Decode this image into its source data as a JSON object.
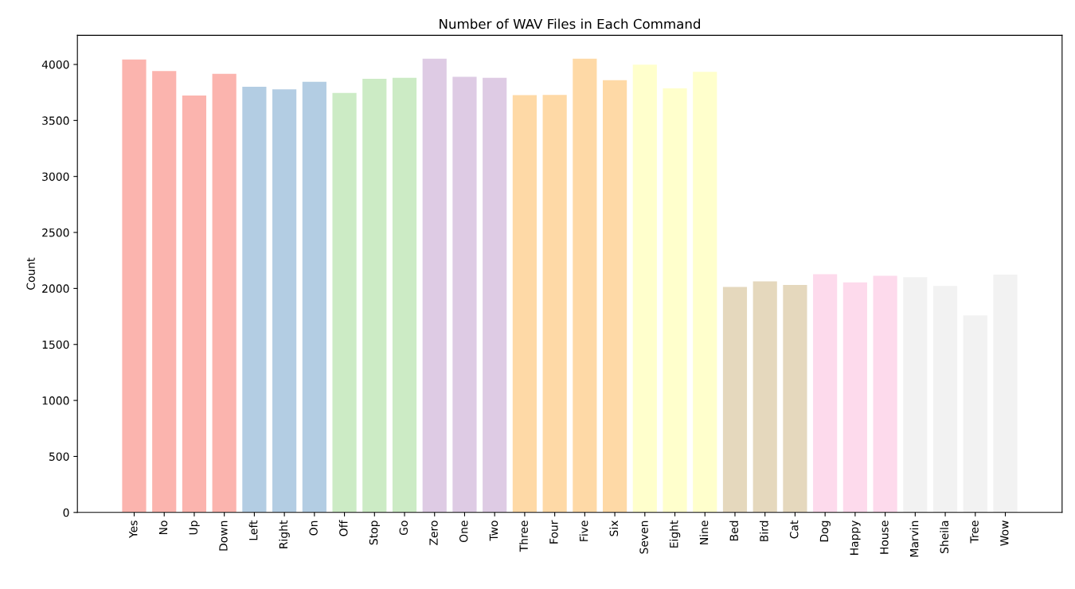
{
  "chart_data": {
    "type": "bar",
    "title": "Number of WAV Files in Each Command",
    "ylabel": "Count",
    "categories": [
      "Yes",
      "No",
      "Up",
      "Down",
      "Left",
      "Right",
      "On",
      "Off",
      "Stop",
      "Go",
      "Zero",
      "One",
      "Two",
      "Three",
      "Four",
      "Five",
      "Six",
      "Seven",
      "Eight",
      "Nine",
      "Bed",
      "Bird",
      "Cat",
      "Dog",
      "Happy",
      "House",
      "Marvin",
      "Sheila",
      "Tree",
      "Wow"
    ],
    "values": [
      4044,
      3941,
      3723,
      3917,
      3801,
      3778,
      3845,
      3745,
      3872,
      3880,
      4052,
      3890,
      3880,
      3727,
      3728,
      4052,
      3860,
      3998,
      3787,
      3934,
      2014,
      2064,
      2031,
      2128,
      2054,
      2113,
      2100,
      2022,
      1759,
      2123
    ],
    "colors": [
      "#fbb4ae",
      "#fbb4ae",
      "#fbb4ae",
      "#fbb4ae",
      "#b3cde3",
      "#b3cde3",
      "#b3cde3",
      "#ccebc5",
      "#ccebc5",
      "#ccebc5",
      "#decbe4",
      "#decbe4",
      "#decbe4",
      "#fed9a6",
      "#fed9a6",
      "#fed9a6",
      "#fed9a6",
      "#ffffcc",
      "#ffffcc",
      "#ffffcc",
      "#e5d8bd",
      "#e5d8bd",
      "#e5d8bd",
      "#fddaec",
      "#fddaec",
      "#fddaec",
      "#f2f2f2",
      "#f2f2f2",
      "#f2f2f2",
      "#f2f2f2"
    ],
    "ylim": [
      0,
      4260
    ],
    "yticks": [
      0,
      500,
      1000,
      1500,
      2000,
      2500,
      3000,
      3500,
      4000
    ],
    "grid": false,
    "legend": false
  }
}
